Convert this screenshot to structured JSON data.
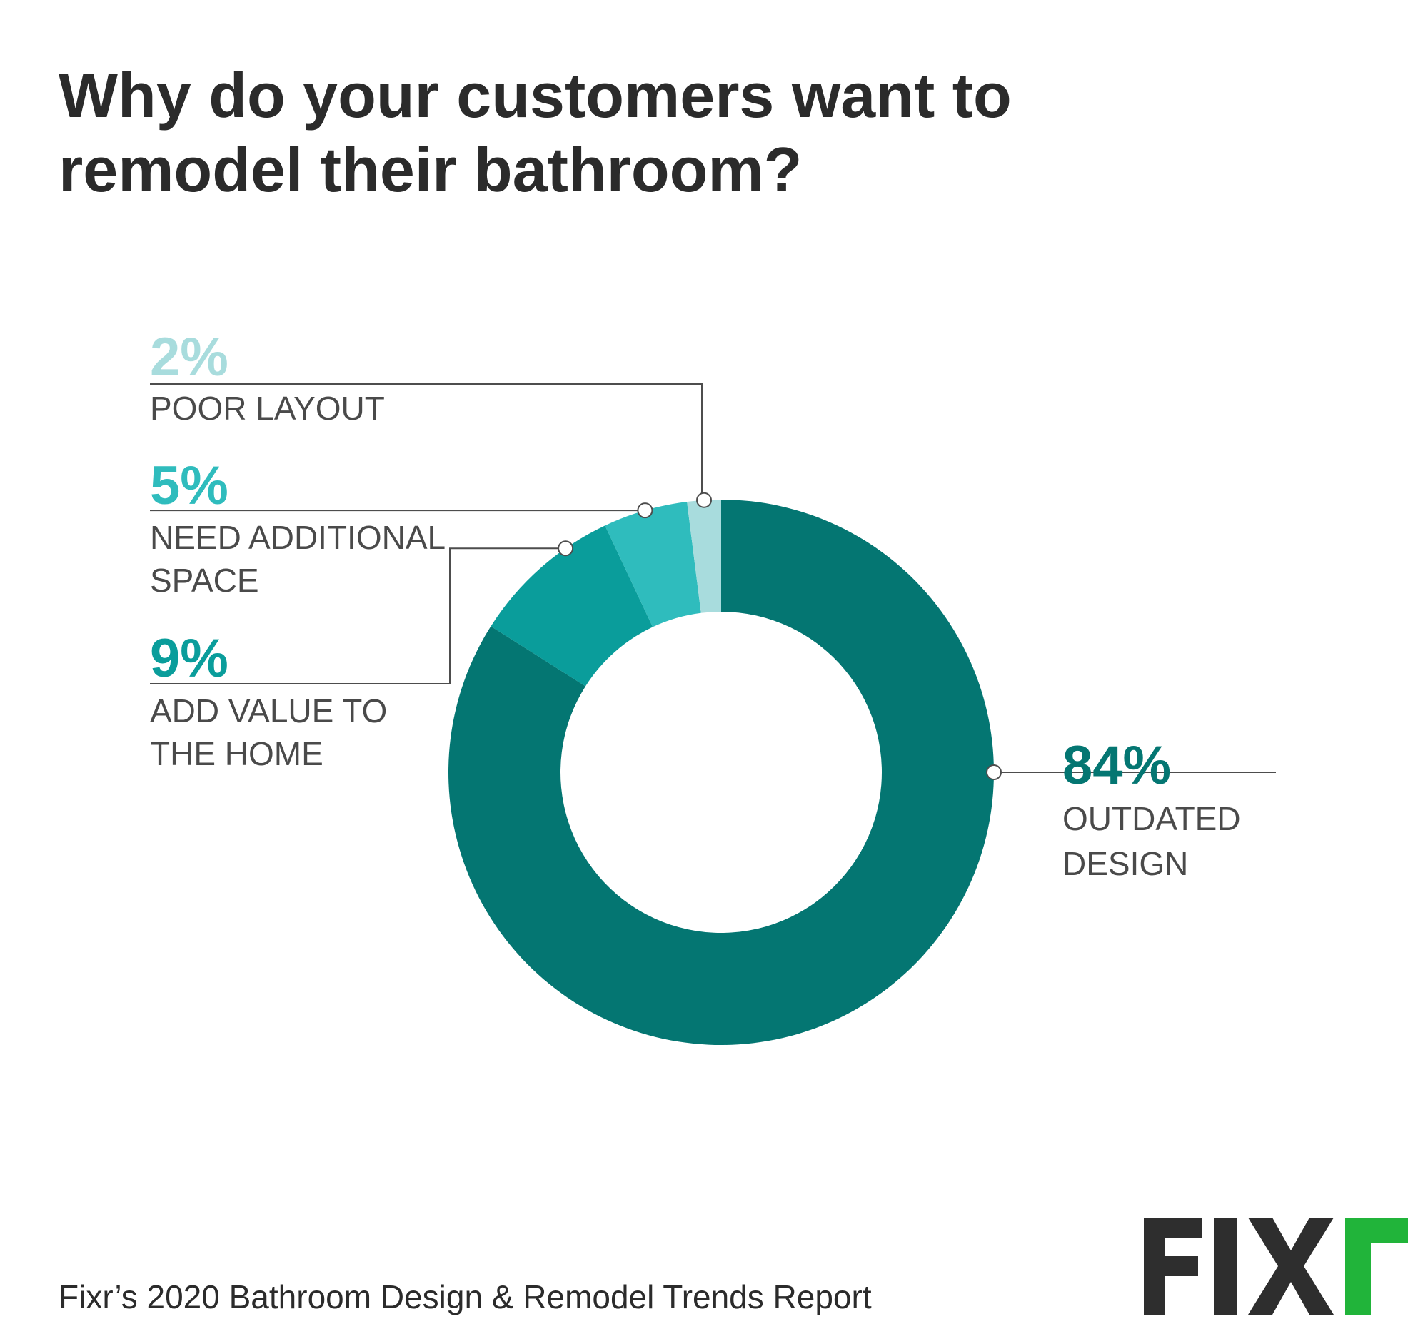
{
  "title": "Why do your customers want to\nremodel their bathroom?",
  "footer": "Fixr’s 2020 Bathroom Design & Remodel Trends Report",
  "logo_text": "FIXr",
  "colors": {
    "outdated": "#047672",
    "add_value": "#0a9d9b",
    "additional_space": "#2fbcbd",
    "poor_layout": "#a8dcdd",
    "leader": "#4d4d4d",
    "logo_dark": "#2e2e2e",
    "logo_green": "#21b43a"
  },
  "chart_data": {
    "type": "pie",
    "donut": true,
    "title": "Why do your customers want to remodel their bathroom?",
    "unit": "%",
    "slices": [
      {
        "label": "OUTDATED DESIGN",
        "lines": [
          "OUTDATED",
          "DESIGN"
        ],
        "value": 84,
        "display": "84%",
        "color": "#047672"
      },
      {
        "label": "ADD VALUE TO THE HOME",
        "lines": [
          "ADD VALUE TO",
          "THE HOME"
        ],
        "value": 9,
        "display": "9%",
        "color": "#0a9d9b"
      },
      {
        "label": "NEED ADDITIONAL SPACE",
        "lines": [
          "NEED ADDITIONAL",
          "SPACE"
        ],
        "value": 5,
        "display": "5%",
        "color": "#2fbcbd"
      },
      {
        "label": "POOR LAYOUT",
        "lines": [
          "POOR LAYOUT"
        ],
        "value": 2,
        "display": "2%",
        "color": "#a8dcdd"
      }
    ]
  }
}
